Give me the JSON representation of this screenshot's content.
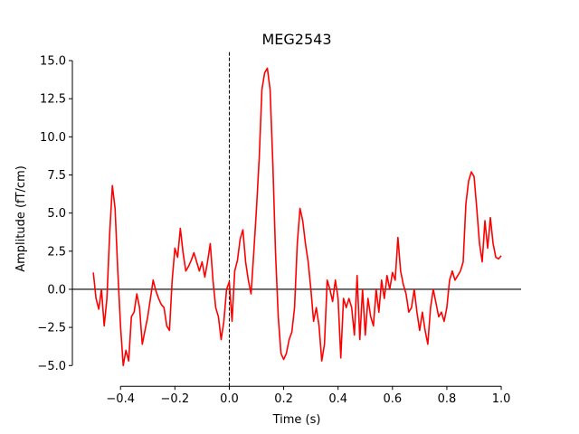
{
  "chart_data": {
    "type": "line",
    "title": "MEG2543",
    "xlabel": "Time (s)",
    "ylabel": "Amplitude (fT/cm)",
    "x": [
      -0.5,
      -0.49,
      -0.48,
      -0.47,
      -0.46,
      -0.45,
      -0.44,
      -0.43,
      -0.42,
      -0.41,
      -0.4,
      -0.39,
      -0.38,
      -0.37,
      -0.36,
      -0.35,
      -0.34,
      -0.33,
      -0.32,
      -0.31,
      -0.3,
      -0.29,
      -0.28,
      -0.27,
      -0.26,
      -0.25,
      -0.24,
      -0.23,
      -0.22,
      -0.21,
      -0.2,
      -0.19,
      -0.18,
      -0.17,
      -0.16,
      -0.15,
      -0.14,
      -0.13,
      -0.12,
      -0.11,
      -0.1,
      -0.09,
      -0.08,
      -0.07,
      -0.06,
      -0.05,
      -0.04,
      -0.03,
      -0.02,
      -0.01,
      0,
      0.01,
      0.02,
      0.03,
      0.04,
      0.05,
      0.06,
      0.07,
      0.08,
      0.09,
      0.1,
      0.11,
      0.12,
      0.13,
      0.14,
      0.15,
      0.16,
      0.17,
      0.18,
      0.19,
      0.2,
      0.21,
      0.22,
      0.23,
      0.24,
      0.25,
      0.26,
      0.27,
      0.28,
      0.29,
      0.3,
      0.31,
      0.32,
      0.33,
      0.34,
      0.35,
      0.36,
      0.37,
      0.38,
      0.39,
      0.4,
      0.41,
      0.42,
      0.43,
      0.44,
      0.45,
      0.46,
      0.47,
      0.48,
      0.49,
      0.5,
      0.51,
      0.52,
      0.53,
      0.54,
      0.55,
      0.56,
      0.57,
      0.58,
      0.59,
      0.6,
      0.61,
      0.62,
      0.63,
      0.64,
      0.65,
      0.66,
      0.67,
      0.68,
      0.69,
      0.7,
      0.71,
      0.72,
      0.73,
      0.74,
      0.75,
      0.76,
      0.77,
      0.78,
      0.79,
      0.8,
      0.81,
      0.82,
      0.83,
      0.84,
      0.85,
      0.86,
      0.87,
      0.88,
      0.89,
      0.9,
      0.91,
      0.92,
      0.93,
      0.94,
      0.95,
      0.96,
      0.97,
      0.98,
      0.99,
      1.0
    ],
    "series": [
      {
        "color": "#ff0000",
        "values": [
          1.1,
          -0.6,
          -1.3,
          0,
          -2.4,
          -0.6,
          3.6,
          6.8,
          5.3,
          1.2,
          -2.4,
          -5.0,
          -4.0,
          -4.7,
          -1.8,
          -1.5,
          -0.3,
          -1.2,
          -3.6,
          -2.7,
          -1.8,
          -0.6,
          0.6,
          -0.1,
          -0.6,
          -1.0,
          -1.2,
          -2.4,
          -2.7,
          0.6,
          2.7,
          2.1,
          4.0,
          2.4,
          1.2,
          1.5,
          1.9,
          2.4,
          1.8,
          1.2,
          1.8,
          0.8,
          1.8,
          3.0,
          0.6,
          -1.2,
          -1.8,
          -3.3,
          -2.1,
          0,
          0.5,
          -2.1,
          1.2,
          1.9,
          3.3,
          3.9,
          1.8,
          0.6,
          -0.3,
          2.4,
          5.3,
          8.6,
          13.1,
          14.2,
          14.5,
          13.1,
          8.3,
          2.4,
          -1.8,
          -4.2,
          -4.6,
          -4.2,
          -3.3,
          -2.8,
          -1.2,
          3.0,
          5.3,
          4.5,
          3.0,
          1.8,
          0,
          -2.1,
          -1.2,
          -2.4,
          -4.7,
          -3.6,
          0.6,
          0,
          -0.8,
          0.6,
          -0.6,
          -4.5,
          -0.6,
          -1.2,
          -0.6,
          -1.2,
          -3.0,
          0.9,
          -3.3,
          0,
          -3.0,
          -0.6,
          -1.8,
          -2.4,
          0,
          -1.5,
          0.6,
          -0.6,
          0.9,
          0,
          1.1,
          0.6,
          3.4,
          1.2,
          0.3,
          -0.3,
          -1.5,
          -1.2,
          0,
          -1.5,
          -2.7,
          -1.5,
          -2.7,
          -3.6,
          -1.2,
          0,
          -0.9,
          -1.8,
          -1.5,
          -2.1,
          -1.2,
          0.6,
          1.2,
          0.6,
          0.9,
          1.2,
          1.8,
          5.6,
          7.1,
          7.7,
          7.4,
          5.3,
          3.0,
          1.8,
          4.5,
          2.7,
          4.7,
          3.0,
          2.1,
          2.0,
          2.2
        ]
      }
    ],
    "xlim": [
      -0.577,
      1.073
    ],
    "ylim": [
      -6.36,
      15.56
    ],
    "xticks": [
      {
        "value": -0.4,
        "label": "−0.4"
      },
      {
        "value": -0.2,
        "label": "−0.2"
      },
      {
        "value": 0,
        "label": "0.0"
      },
      0.2,
      0.4,
      0.6,
      0.8,
      {
        "value": 1.0,
        "label": "1.0"
      }
    ],
    "yticks": [
      {
        "value": -5,
        "label": "−5.0"
      },
      {
        "value": -2.5,
        "label": "−2.5"
      },
      {
        "value": 0,
        "label": "0.0"
      },
      2.5,
      {
        "value": 5,
        "label": "5.0"
      },
      7.5,
      {
        "value": 10,
        "label": "10.0"
      },
      12.5,
      {
        "value": 15,
        "label": "15.0"
      }
    ]
  }
}
